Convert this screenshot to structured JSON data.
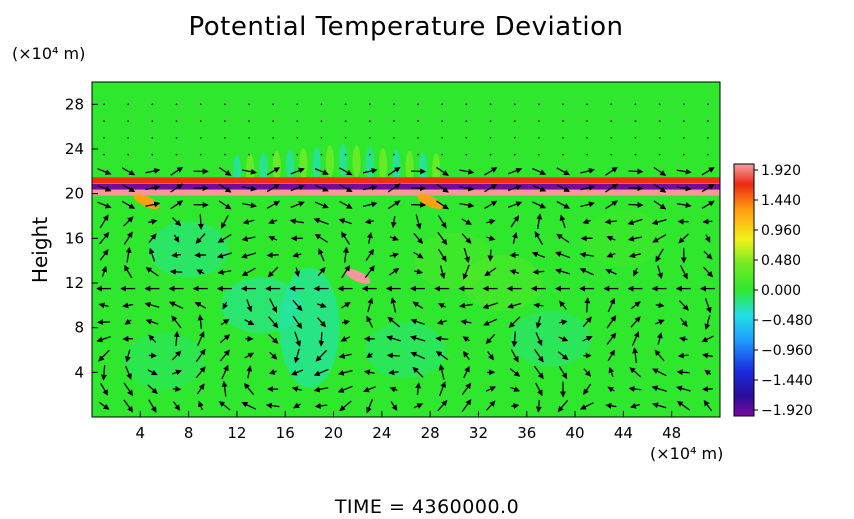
{
  "chart_data": {
    "type": "heatmap",
    "title": "Potential Temperature Deviation",
    "ylabel": "Height",
    "x_unit_label": "(×10⁴ m)",
    "y_unit_label": "(×10⁴ m)",
    "xlim": [
      0,
      52
    ],
    "ylim": [
      0,
      30
    ],
    "x_ticks": [
      "4",
      "8",
      "12",
      "16",
      "20",
      "24",
      "28",
      "32",
      "36",
      "40",
      "44",
      "48"
    ],
    "y_ticks": [
      "4",
      "8",
      "12",
      "16",
      "20",
      "24",
      "28"
    ],
    "colorbar": {
      "range": [
        -1.92,
        1.92
      ],
      "labels": [
        "1.920",
        "1.440",
        "0.960",
        "0.480",
        "0.000",
        "−0.480",
        "−0.960",
        "−1.440",
        "−1.920"
      ]
    },
    "background_value": 0.0,
    "features": [
      {
        "kind": "stratified-band",
        "y": 21.2,
        "value": 1.6
      },
      {
        "kind": "stratified-band",
        "y": 20.6,
        "value": -1.9
      },
      {
        "kind": "stratified-band",
        "y": 20.1,
        "value": 1.9
      },
      {
        "kind": "warm-blob",
        "x": 22,
        "y": 12.6,
        "value": 1.9
      },
      {
        "kind": "warm-blob",
        "x": 4.5,
        "y": 19.3,
        "value": 1.2
      },
      {
        "kind": "warm-blob",
        "x": 28,
        "y": 19.3,
        "value": 1.2
      },
      {
        "kind": "cool-region",
        "x": 18,
        "y": 8,
        "value": -0.3
      }
    ],
    "overlay": "wind-vector-arrows",
    "time_label": "TIME  =  4360000.0"
  }
}
